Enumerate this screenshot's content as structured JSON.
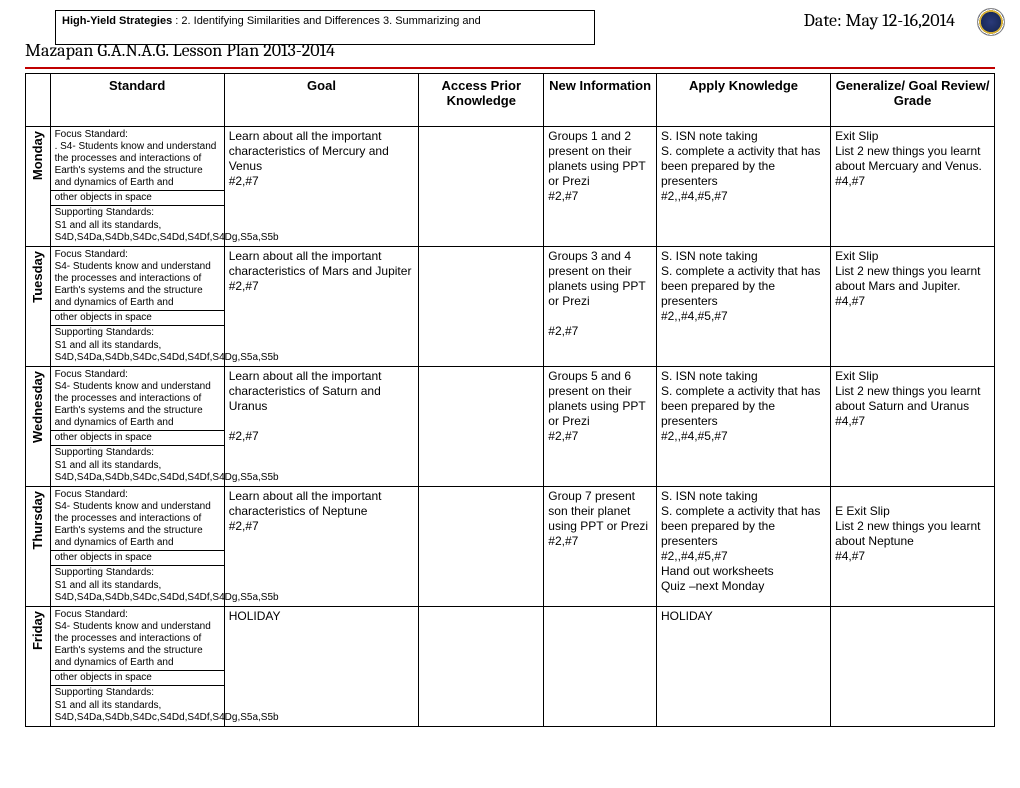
{
  "header": {
    "strategies_label": "High-Yield Strategies",
    "strategies_text": " :  2.  Identifying Similarities and Differences  3.  Summarizing and",
    "date": "Date: May 12-16,2014",
    "title": "Mazapan G.A.N.A.G. Lesson Plan 2013-2014"
  },
  "columns": {
    "standard": "Standard",
    "goal": "Goal",
    "apk": "Access Prior Knowledge",
    "newinfo": "New Information",
    "apply": "Apply Knowledge",
    "generalize": "Generalize/ Goal Review/ Grade"
  },
  "days": {
    "mon": {
      "label": "Monday",
      "std_focus": "Focus Standard:",
      "std_focus_body": ". S4- Students know and understand the processes and interactions of Earth's systems and the structure and dynamics of Earth and",
      "std_other": "other objects in space",
      "std_support": "Supporting Standards:",
      "std_support_body": "S1 and all its standards, S4D,S4Da,S4Db,S4Dc,S4Dd,S4Df,S4Dg,S5a,S5b",
      "goal": "Learn about all the important characteristics of Mercury and Venus\n#2,#7",
      "apk": "",
      "newinfo": "Groups 1 and 2 present on their planets using PPT or Prezi\n#2,#7",
      "apply": "S. ISN note taking\nS. complete a activity that has been prepared by the presenters\n#2,,#4,#5,#7",
      "generalize": "Exit Slip\nList 2 new things you learnt about Mercuary and Venus.\n#4,#7"
    },
    "tue": {
      "label": "Tuesday",
      "std_focus": "Focus Standard:",
      "std_focus_body": "S4- Students know and understand the processes and interactions of Earth's systems and the structure and dynamics of Earth and",
      "std_other": "other objects in space",
      "std_support": "Supporting Standards:",
      "std_support_body": "S1 and all its standards, S4D,S4Da,S4Db,S4Dc,S4Dd,S4Df,S4Dg,S5a,S5b",
      "goal": "Learn about all the important characteristics of Mars and Jupiter\n#2,#7",
      "apk": "",
      "newinfo": " Groups 3 and 4 present on their planets using PPT or Prezi\n\n#2,#7",
      "apply": "S. ISN note taking\nS. complete a activity that has been prepared by the presenters\n#2,,#4,#5,#7",
      "generalize": "Exit Slip\nList 2 new things you learnt about Mars and Jupiter.\n#4,#7"
    },
    "wed": {
      "label": "Wednesday",
      "std_focus": "Focus Standard:",
      "std_focus_body": "S4- Students know and understand the processes and interactions of Earth's systems and the structure and dynamics of Earth and",
      "std_other": "other objects in space",
      "std_support": "Supporting Standards:",
      "std_support_body": "S1 and all its standards, S4D,S4Da,S4Db,S4Dc,S4Dd,S4Df,S4Dg,S5a,S5b",
      "goal": "Learn about all the important characteristics of Saturn and Uranus\n\n#2,#7",
      "apk": "",
      "newinfo": "Groups 5 and 6 present on their planets using PPT or Prezi\n#2,#7",
      "apply": "S. ISN note taking\nS. complete a activity that has been prepared by the presenters\n#2,,#4,#5,#7",
      "generalize": "Exit Slip\nList 2 new things you learnt about Saturn and Uranus\n#4,#7"
    },
    "thu": {
      "label": "Thursday",
      "std_focus": "Focus Standard:",
      "std_focus_body": "S4- Students know and understand the processes and interactions of Earth's systems and the structure and dynamics of Earth and",
      "std_other": "other objects in space",
      "std_support": "Supporting Standards:",
      "std_support_body": "S1 and all its standards, S4D,S4Da,S4Db,S4Dc,S4Dd,S4Df,S4Dg,S5a,S5b",
      "goal": "Learn about all the important characteristics of Neptune\n#2,#7",
      "apk": "",
      "newinfo": "Group 7 present son their planet using PPT or Prezi\n#2,#7",
      "apply": "S. ISN note taking\nS. complete a activity that has been prepared by the presenters\n#2,,#4,#5,#7\nHand out worksheets\nQuiz –next Monday",
      "generalize": "\nE Exit Slip\nList 2 new things you learnt about Neptune\n#4,#7"
    },
    "fri": {
      "label": "Friday",
      "std_focus": "Focus Standard:",
      "std_focus_body": "S4- Students know and understand the processes and interactions of Earth's systems and the structure and dynamics of Earth and",
      "std_other": "other objects in space",
      "std_support": "Supporting Standards:",
      "std_support_body": "S1 and all its standards, S4D,S4Da,S4Db,S4Dc,S4Dd,S4Df,S4Dg,S5a,S5b",
      "goal": "HOLIDAY",
      "apk": "",
      "newinfo": "",
      "apply": "HOLIDAY",
      "generalize": ""
    }
  }
}
